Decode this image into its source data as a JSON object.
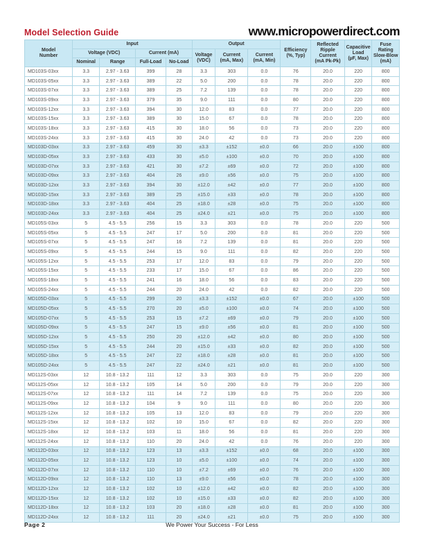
{
  "page": {
    "title": "Model Selection Guide",
    "website": "www.micropowerdirect.com",
    "footer_left": "Page 2",
    "footer_center": "We Power Your Success - For Less"
  },
  "colors": {
    "title_red": "#be1e2d",
    "header_bg": "#c9e8f4",
    "highlight_row_bg": "#d6eef7",
    "grid_line": "#aed6e4"
  },
  "table": {
    "header": {
      "model_number": "Model\nNumber",
      "input_group": "Input",
      "output_group": "Output",
      "in_voltage": "Voltage (VDC)",
      "in_current": "Current (mA)",
      "nominal": "Nominal",
      "range": "Range",
      "full_load": "Full-Load",
      "no_load": "No-Load",
      "out_voltage": "Voltage\n(VDC)",
      "out_current_max": "Current\n(mA, Max)",
      "out_current_min": "Current\n(mA, Min)",
      "efficiency": "Efficiency\n(%, Typ)",
      "reflected_ripple": "Reflected\nRipple\nCurrent\n(mA Pk-Pk)",
      "capacitive_load": "Capacitive\nLoad\n(µF, Max)",
      "fuse_rating": "Fuse Rating\nSlow-Blow\n(mA)"
    },
    "rows": [
      {
        "highlight": false,
        "cells": [
          "MD103S-03xx",
          "3.3",
          "2.97 - 3.63",
          "399",
          "28",
          "3.3",
          "303",
          "0.0",
          "76",
          "20.0",
          "220",
          "800"
        ]
      },
      {
        "highlight": false,
        "cells": [
          "MD103S-05xx",
          "3.3",
          "2.97 - 3.63",
          "389",
          "22",
          "5.0",
          "200",
          "0.0",
          "78",
          "20.0",
          "220",
          "800"
        ]
      },
      {
        "highlight": false,
        "cells": [
          "MD103S-07xx",
          "3.3",
          "2.97 - 3.63",
          "389",
          "25",
          "7.2",
          "139",
          "0.0",
          "78",
          "20.0",
          "220",
          "800"
        ]
      },
      {
        "highlight": false,
        "cells": [
          "MD103S-09xx",
          "3.3",
          "2.97 - 3.63",
          "379",
          "35",
          "9.0",
          "111",
          "0.0",
          "80",
          "20.0",
          "220",
          "800"
        ]
      },
      {
        "highlight": false,
        "cells": [
          "MD103S-12xx",
          "3.3",
          "2.97 - 3.63",
          "394",
          "30",
          "12.0",
          "83",
          "0.0",
          "77",
          "20.0",
          "220",
          "800"
        ]
      },
      {
        "highlight": false,
        "cells": [
          "MD103S-15xx",
          "3.3",
          "2.97 - 3.63",
          "389",
          "30",
          "15.0",
          "67",
          "0.0",
          "78",
          "20.0",
          "220",
          "800"
        ]
      },
      {
        "highlight": false,
        "cells": [
          "MD103S-18xx",
          "3.3",
          "2.97 - 3.63",
          "415",
          "30",
          "18.0",
          "56",
          "0.0",
          "73",
          "20.0",
          "220",
          "800"
        ]
      },
      {
        "highlight": false,
        "cells": [
          "MD103S-24xx",
          "3.3",
          "2.97 - 3.63",
          "415",
          "30",
          "24.0",
          "42",
          "0.0",
          "73",
          "20.0",
          "220",
          "800"
        ]
      },
      {
        "highlight": true,
        "cells": [
          "MD103D-03xx",
          "3.3",
          "2.97 - 3.63",
          "459",
          "30",
          "±3.3",
          "±152",
          "±0.0",
          "66",
          "20.0",
          "±100",
          "800"
        ]
      },
      {
        "highlight": true,
        "cells": [
          "MD103D-05xx",
          "3.3",
          "2.97 - 3.63",
          "433",
          "30",
          "±5.0",
          "±100",
          "±0.0",
          "70",
          "20.0",
          "±100",
          "800"
        ]
      },
      {
        "highlight": true,
        "cells": [
          "MD103D-07xx",
          "3.3",
          "2.97 - 3.63",
          "421",
          "30",
          "±7.2",
          "±69",
          "±0.0",
          "72",
          "20.0",
          "±100",
          "800"
        ]
      },
      {
        "highlight": true,
        "cells": [
          "MD103D-09xx",
          "3.3",
          "2.97 - 3.63",
          "404",
          "26",
          "±9.0",
          "±56",
          "±0.0",
          "75",
          "20.0",
          "±100",
          "800"
        ]
      },
      {
        "highlight": true,
        "cells": [
          "MD103D-12xx",
          "3.3",
          "2.97 - 3.63",
          "394",
          "30",
          "±12.0",
          "±42",
          "±0.0",
          "77",
          "20.0",
          "±100",
          "800"
        ]
      },
      {
        "highlight": true,
        "cells": [
          "MD103D-15xx",
          "3.3",
          "2.97 - 3.63",
          "389",
          "25",
          "±15.0",
          "±33",
          "±0.0",
          "78",
          "20.0",
          "±100",
          "800"
        ]
      },
      {
        "highlight": true,
        "cells": [
          "MD103D-18xx",
          "3.3",
          "2.97 - 3.63",
          "404",
          "25",
          "±18.0",
          "±28",
          "±0.0",
          "75",
          "20.0",
          "±100",
          "800"
        ]
      },
      {
        "highlight": true,
        "cells": [
          "MD103D-24xx",
          "3.3",
          "2.97 - 3.63",
          "404",
          "25",
          "±24.0",
          "±21",
          "±0.0",
          "75",
          "20.0",
          "±100",
          "800"
        ]
      },
      {
        "highlight": false,
        "cells": [
          "MD105S-03xx",
          "5",
          "4.5 - 5.5",
          "256",
          "15",
          "3.3",
          "303",
          "0.0",
          "78",
          "20.0",
          "220",
          "500"
        ]
      },
      {
        "highlight": false,
        "cells": [
          "MD105S-05xx",
          "5",
          "4.5 - 5.5",
          "247",
          "17",
          "5.0",
          "200",
          "0.0",
          "81",
          "20.0",
          "220",
          "500"
        ]
      },
      {
        "highlight": false,
        "cells": [
          "MD105S-07xx",
          "5",
          "4.5 - 5.5",
          "247",
          "16",
          "7.2",
          "139",
          "0.0",
          "81",
          "20.0",
          "220",
          "500"
        ]
      },
      {
        "highlight": false,
        "cells": [
          "MD105S-09xx",
          "5",
          "4.5 - 5.5",
          "244",
          "15",
          "9.0",
          "111",
          "0.0",
          "82",
          "20.0",
          "220",
          "500"
        ]
      },
      {
        "highlight": false,
        "cells": [
          "MD105S-12xx",
          "5",
          "4.5 - 5.5",
          "253",
          "17",
          "12.0",
          "83",
          "0.0",
          "79",
          "20.0",
          "220",
          "500"
        ]
      },
      {
        "highlight": false,
        "cells": [
          "MD105S-15xx",
          "5",
          "4.5 - 5.5",
          "233",
          "17",
          "15.0",
          "67",
          "0.0",
          "86",
          "20.0",
          "220",
          "500"
        ]
      },
      {
        "highlight": false,
        "cells": [
          "MD105S-18xx",
          "5",
          "4.5 - 5.5",
          "241",
          "16",
          "18.0",
          "56",
          "0.0",
          "83",
          "20.0",
          "220",
          "500"
        ]
      },
      {
        "highlight": false,
        "cells": [
          "MD105S-24xx",
          "5",
          "4.5 - 5.5",
          "244",
          "20",
          "24.0",
          "42",
          "0.0",
          "82",
          "20.0",
          "220",
          "500"
        ]
      },
      {
        "highlight": true,
        "cells": [
          "MD105D-03xx",
          "5",
          "4.5 - 5.5",
          "299",
          "20",
          "±3.3",
          "±152",
          "±0.0",
          "67",
          "20.0",
          "±100",
          "500"
        ]
      },
      {
        "highlight": true,
        "cells": [
          "MD105D-05xx",
          "5",
          "4.5 - 5.5",
          "270",
          "20",
          "±5.0",
          "±100",
          "±0.0",
          "74",
          "20.0",
          "±100",
          "500"
        ]
      },
      {
        "highlight": true,
        "cells": [
          "MD105D-07xx",
          "5",
          "4.5 - 5.5",
          "253",
          "15",
          "±7.2",
          "±69",
          "±0.0",
          "79",
          "20.0",
          "±100",
          "500"
        ]
      },
      {
        "highlight": true,
        "cells": [
          "MD105D-09xx",
          "5",
          "4.5 - 5.5",
          "247",
          "15",
          "±9.0",
          "±56",
          "±0.0",
          "81",
          "20.0",
          "±100",
          "500"
        ]
      },
      {
        "highlight": true,
        "cells": [
          "MD105D-12xx",
          "5",
          "4.5 - 5.5",
          "250",
          "20",
          "±12.0",
          "±42",
          "±0.0",
          "80",
          "20.0",
          "±100",
          "500"
        ]
      },
      {
        "highlight": true,
        "cells": [
          "MD105D-15xx",
          "5",
          "4.5 - 5.5",
          "244",
          "20",
          "±15.0",
          "±33",
          "±0.0",
          "82",
          "20.0",
          "±100",
          "500"
        ]
      },
      {
        "highlight": true,
        "cells": [
          "MD105D-18xx",
          "5",
          "4.5 - 5.5",
          "247",
          "22",
          "±18.0",
          "±28",
          "±0.0",
          "81",
          "20.0",
          "±100",
          "500"
        ]
      },
      {
        "highlight": true,
        "cells": [
          "MD105D-24xx",
          "5",
          "4.5 - 5.5",
          "247",
          "22",
          "±24.0",
          "±21",
          "±0.0",
          "81",
          "20.0",
          "±100",
          "500"
        ]
      },
      {
        "highlight": false,
        "cells": [
          "MD112S-03xx",
          "12",
          "10.8 - 13.2",
          "111",
          "12",
          "3.3",
          "303",
          "0.0",
          "75",
          "20.0",
          "220",
          "300"
        ]
      },
      {
        "highlight": false,
        "cells": [
          "MD112S-05xx",
          "12",
          "10.8 - 13.2",
          "105",
          "14",
          "5.0",
          "200",
          "0.0",
          "79",
          "20.0",
          "220",
          "300"
        ]
      },
      {
        "highlight": false,
        "cells": [
          "MD112S-07xx",
          "12",
          "10.8 - 13.2",
          "111",
          "14",
          "7.2",
          "139",
          "0.0",
          "75",
          "20.0",
          "220",
          "300"
        ]
      },
      {
        "highlight": false,
        "cells": [
          "MD112S-09xx",
          "12",
          "10.8 - 13.2",
          "104",
          "9",
          "9.0",
          "111",
          "0.0",
          "80",
          "20.0",
          "220",
          "300"
        ]
      },
      {
        "highlight": false,
        "cells": [
          "MD112S-12xx",
          "12",
          "10.8 - 13.2",
          "105",
          "13",
          "12.0",
          "83",
          "0.0",
          "79",
          "20.0",
          "220",
          "300"
        ]
      },
      {
        "highlight": false,
        "cells": [
          "MD112S-15xx",
          "12",
          "10.8 - 13.2",
          "102",
          "10",
          "15.0",
          "67",
          "0.0",
          "82",
          "20.0",
          "220",
          "300"
        ]
      },
      {
        "highlight": false,
        "cells": [
          "MD112S-18xx",
          "12",
          "10.8 - 13.2",
          "103",
          "11",
          "18.0",
          "56",
          "0.0",
          "81",
          "20.0",
          "220",
          "300"
        ]
      },
      {
        "highlight": false,
        "cells": [
          "MD112S-24xx",
          "12",
          "10.8 - 13.2",
          "110",
          "20",
          "24.0",
          "42",
          "0.0",
          "76",
          "20.0",
          "220",
          "300"
        ]
      },
      {
        "highlight": true,
        "cells": [
          "MD112D-03xx",
          "12",
          "10.8 - 13.2",
          "123",
          "13",
          "±3.3",
          "±152",
          "±0.0",
          "68",
          "20.0",
          "±100",
          "300"
        ]
      },
      {
        "highlight": true,
        "cells": [
          "MD112D-05xx",
          "12",
          "10.8 - 13.2",
          "123",
          "10",
          "±5.0",
          "±100",
          "±0.0",
          "74",
          "20.0",
          "±100",
          "300"
        ]
      },
      {
        "highlight": true,
        "cells": [
          "MD112D-07xx",
          "12",
          "10.8 - 13.2",
          "110",
          "10",
          "±7.2",
          "±69",
          "±0.0",
          "76",
          "20.0",
          "±100",
          "300"
        ]
      },
      {
        "highlight": true,
        "cells": [
          "MD112D-09xx",
          "12",
          "10.8 - 13.2",
          "110",
          "13",
          "±9.0",
          "±56",
          "±0.0",
          "78",
          "20.0",
          "±100",
          "300"
        ]
      },
      {
        "highlight": true,
        "cells": [
          "MD112D-12xx",
          "12",
          "10.8 - 13.2",
          "102",
          "10",
          "±12.0",
          "±42",
          "±0.0",
          "82",
          "20.0",
          "±100",
          "300"
        ]
      },
      {
        "highlight": true,
        "cells": [
          "MD112D-15xx",
          "12",
          "10.8 - 13.2",
          "102",
          "10",
          "±15.0",
          "±33",
          "±0.0",
          "82",
          "20.0",
          "±100",
          "300"
        ]
      },
      {
        "highlight": true,
        "cells": [
          "MD112D-18xx",
          "12",
          "10.8 - 13.2",
          "103",
          "20",
          "±18.0",
          "±28",
          "±0.0",
          "81",
          "20.0",
          "±100",
          "300"
        ]
      },
      {
        "highlight": true,
        "cells": [
          "MD112D-24xx",
          "12",
          "10.8 - 13.2",
          "111",
          "20",
          "±24.0",
          "±21",
          "±0.0",
          "75",
          "20.0",
          "±100",
          "300"
        ]
      }
    ]
  }
}
